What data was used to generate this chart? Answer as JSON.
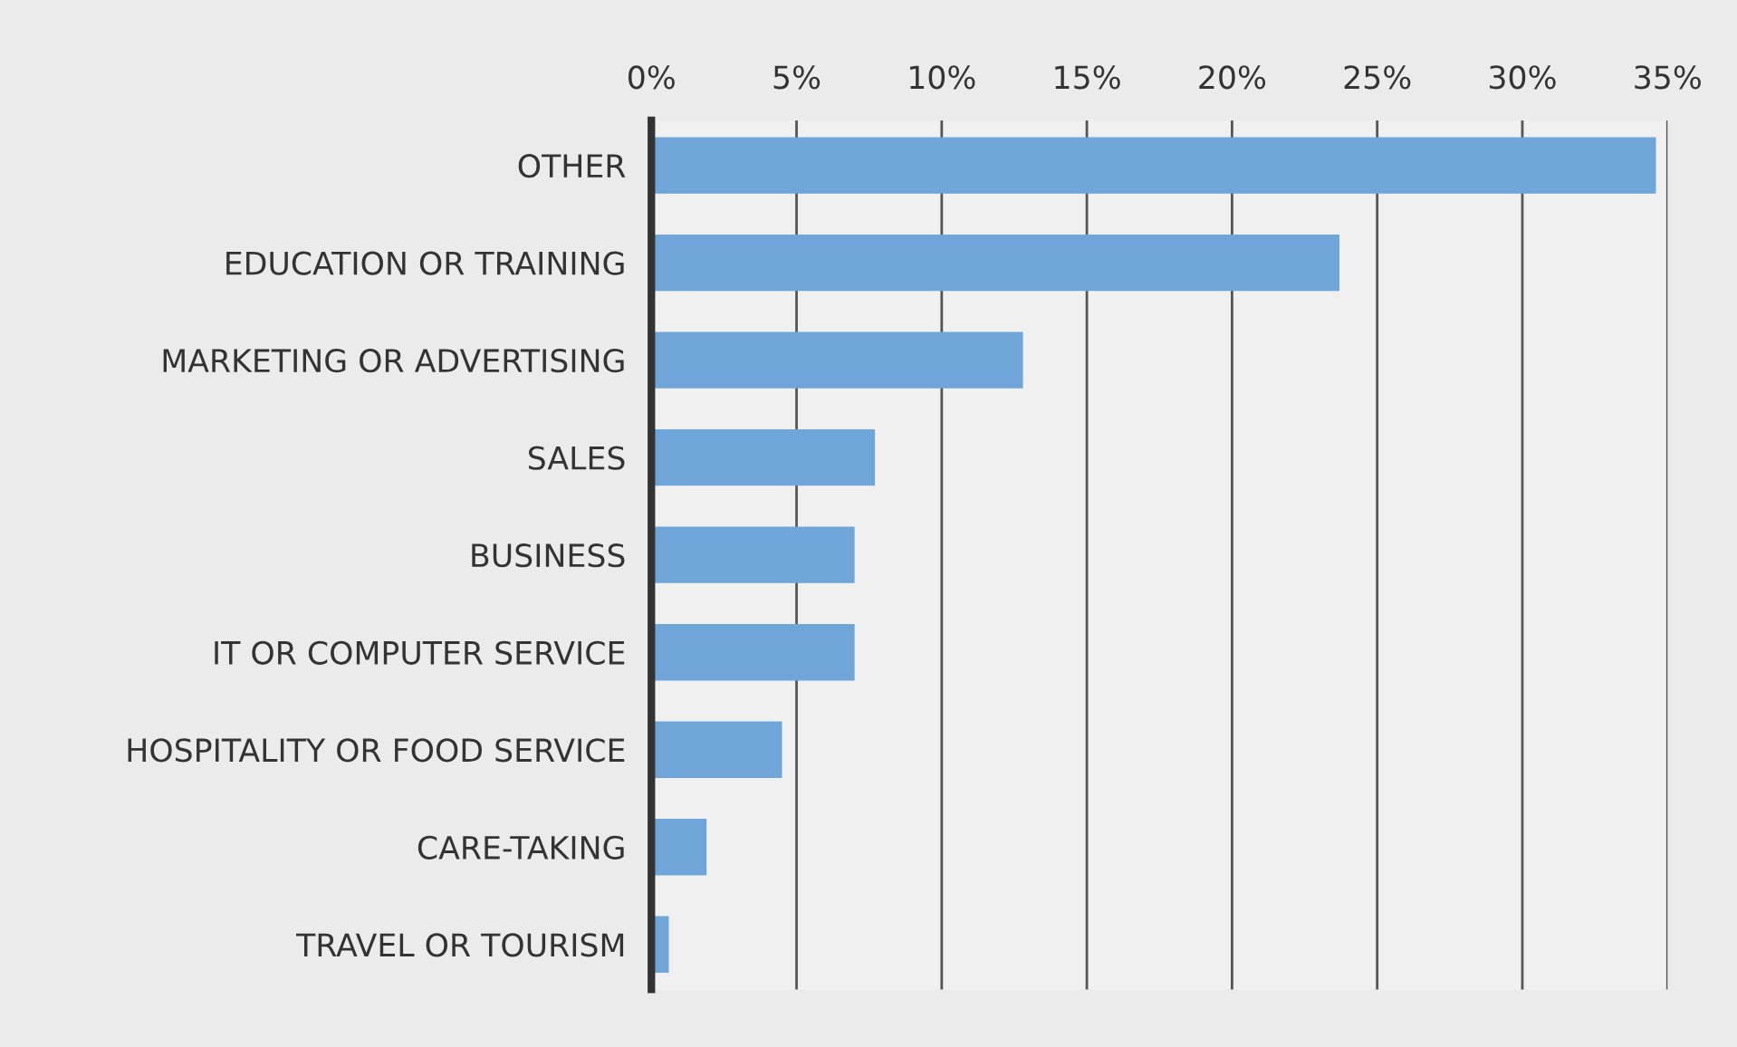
{
  "chart_data": {
    "type": "bar",
    "orientation": "horizontal",
    "categories": [
      "OTHER",
      "EDUCATION OR TRAINING",
      "MARKETING OR ADVERTISING",
      "SALES",
      "BUSINESS",
      "IT OR COMPUTER SERVICE",
      "HOSPITALITY OR FOOD SERVICE",
      "CARE-TAKING",
      "TRAVEL OR TOURISM"
    ],
    "values": [
      34.6,
      23.7,
      12.8,
      7.7,
      7.0,
      7.0,
      4.5,
      1.9,
      0.6
    ],
    "color": "#6fa5d9",
    "xlim": [
      0,
      35
    ],
    "xticks": [
      {
        "value": 0,
        "label": "0%"
      },
      {
        "value": 5,
        "label": "5%"
      },
      {
        "value": 10,
        "label": "10%"
      },
      {
        "value": 15,
        "label": "15%"
      },
      {
        "value": 20,
        "label": "20%"
      },
      {
        "value": 25,
        "label": "25%"
      },
      {
        "value": 30,
        "label": "30%"
      },
      {
        "value": 35,
        "label": "35%"
      }
    ],
    "grid": "x"
  }
}
